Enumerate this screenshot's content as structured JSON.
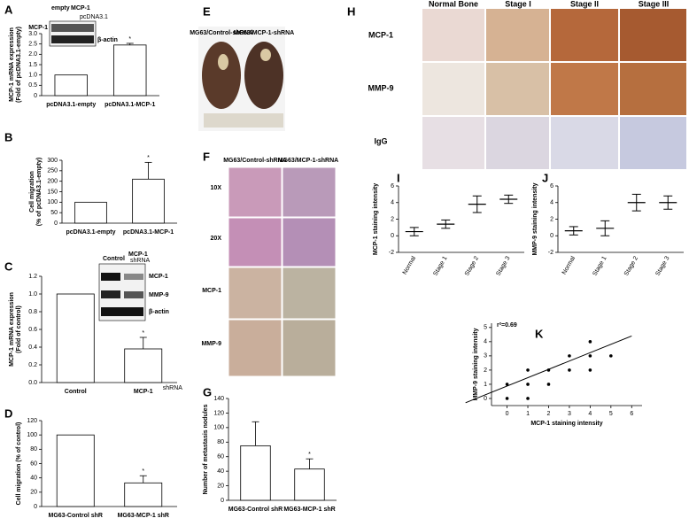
{
  "chart_data": [
    {
      "type": "bar",
      "label": "A",
      "categories": [
        "pcDNA3.1-empty",
        "pcDNA3.1-MCP-1"
      ],
      "values": [
        1.0,
        2.45
      ],
      "errors": [
        0,
        0.08
      ],
      "marks": [
        null,
        "*"
      ],
      "y_label": [
        "MCP-1 mRNA expression",
        "(Fold of pcDNA3.1-empty)"
      ],
      "ylim": [
        0,
        3
      ],
      "yticks": [
        0,
        0.5,
        {
          "value": 1,
          "label": "1.0"
        },
        1.5,
        {
          "value": 2,
          "label": "2.0"
        },
        2.5,
        {
          "value": 3,
          "label": "3.0"
        }
      ],
      "color": "#ffffff"
    },
    {
      "type": "bar",
      "label": "B",
      "categories": [
        "pcDNA3.1-empty",
        "pcDNA3.1-MCP-1"
      ],
      "values": [
        100,
        210
      ],
      "errors": [
        0,
        80
      ],
      "marks": [
        null,
        "*"
      ],
      "y_label": [
        "Cell migration",
        "(% of pcDNA3.1-empty)"
      ],
      "ylim": [
        0,
        300
      ],
      "yticks": [
        0,
        50,
        100,
        150,
        200,
        250,
        300
      ],
      "color": "#ffffff"
    },
    {
      "type": "bar",
      "label": "C",
      "categories": [
        "Control",
        "MCP-1"
      ],
      "category_note": "shRNA",
      "values": [
        1.0,
        0.38
      ],
      "errors": [
        0,
        0.13
      ],
      "marks": [
        null,
        "*"
      ],
      "y_label": [
        "MCP-1 mRNA expression",
        "(Fold of control)"
      ],
      "ylim": [
        0,
        1.2
      ],
      "yticks": [
        {
          "value": 0,
          "label": "0.0"
        },
        0.2,
        0.4,
        0.6,
        0.8,
        {
          "value": 1,
          "label": "1.0"
        },
        1.2
      ],
      "color": "#ffffff"
    },
    {
      "type": "bar",
      "label": "D",
      "categories": [
        "MG63-Control shR",
        "MG63-MCP-1 shR"
      ],
      "values": [
        100,
        33
      ],
      "errors": [
        0,
        10
      ],
      "marks": [
        null,
        "*"
      ],
      "y_label": [
        "Cell migration (% of control)"
      ],
      "ylim": [
        0,
        120
      ],
      "yticks": [
        0,
        20,
        40,
        60,
        80,
        100,
        120
      ],
      "color": "#ffffff"
    },
    {
      "type": "bar",
      "label": "G",
      "categories": [
        "MG63-Control shR",
        "MG63-MCP-1 shR"
      ],
      "values": [
        75,
        43
      ],
      "errors": [
        33,
        14
      ],
      "marks": [
        null,
        "*"
      ],
      "y_label": [
        "Number of metastasis nodules"
      ],
      "ylim": [
        0,
        140
      ],
      "yticks": [
        0,
        20,
        40,
        60,
        80,
        100,
        120,
        140
      ],
      "color": "#ffffff"
    },
    {
      "type": "dot",
      "label": "I",
      "categories": [
        "Normal",
        "Stage 1",
        "Stage 2",
        "Stage 3"
      ],
      "values": [
        0.5,
        1.4,
        3.8,
        4.4
      ],
      "errors": [
        0.5,
        0.5,
        1.0,
        0.5
      ],
      "y_label": [
        "MCP-1 staining intensity"
      ],
      "ylim": [
        -2,
        6
      ],
      "yticks": [
        -2,
        0,
        2,
        4,
        6
      ],
      "color": "#000000"
    },
    {
      "type": "dot",
      "label": "J",
      "categories": [
        "Normal",
        "Stage 1",
        "Stage 2",
        "Stage 3"
      ],
      "values": [
        0.6,
        0.9,
        4.0,
        4.0
      ],
      "errors": [
        0.5,
        0.9,
        1.0,
        0.8
      ],
      "y_label": [
        "MMP-9 staining intensity"
      ],
      "ylim": [
        -2,
        6
      ],
      "yticks": [
        -2,
        0,
        2,
        4,
        6
      ],
      "color": "#000000"
    },
    {
      "type": "scatter",
      "label": "K",
      "x": [
        0,
        0,
        1,
        1,
        1,
        2,
        2,
        3,
        3,
        4,
        4,
        4,
        5
      ],
      "y": [
        0,
        1,
        0,
        1,
        2,
        1,
        2,
        2,
        3,
        2,
        3,
        4,
        3
      ],
      "fit_x": [
        -2,
        6
      ],
      "fit_y": [
        -0.3,
        4.4
      ],
      "annotation": "r²=0.69",
      "x_label": "MCP-1 staining intensity",
      "y_label": [
        "MMP-9 staining intensity"
      ],
      "xlim": [
        -0.75,
        6.5
      ],
      "ylim": [
        -0.5,
        5.3
      ],
      "xticks": [
        0,
        1,
        2,
        3,
        4,
        5,
        6
      ],
      "yticks": [
        0,
        1,
        2,
        3,
        4,
        5
      ],
      "color": "#000000"
    }
  ],
  "images": {
    "A_blot": {
      "col_labels": [
        "empty",
        "MCP-1"
      ],
      "group_label": "pcDNA3.1",
      "row_labels": [
        "MCP-1",
        "β-actin"
      ]
    },
    "C_blot": {
      "col_labels": [
        "Control",
        "MCP-1"
      ],
      "group_label": "shRNA",
      "row_labels": [
        "MCP-1",
        "MMP-9",
        "β-actin"
      ]
    },
    "E": {
      "label": "E",
      "col_labels": [
        "MG63/Control-shRNA",
        "MG63/MCP-1-shRNA"
      ]
    },
    "F": {
      "label": "F",
      "col_labels": [
        "MG63/Control-shRNA",
        "MG63/MCP-1-shRNA"
      ],
      "row_labels": [
        "10X",
        "20X",
        "MCP-1",
        "MMP-9"
      ]
    },
    "H": {
      "label": "H",
      "col_labels": [
        "Normal Bone",
        "Stage I",
        "Stage II",
        "Stage III"
      ],
      "row_labels": [
        "MCP-1",
        "MMP-9",
        "IgG"
      ]
    }
  }
}
